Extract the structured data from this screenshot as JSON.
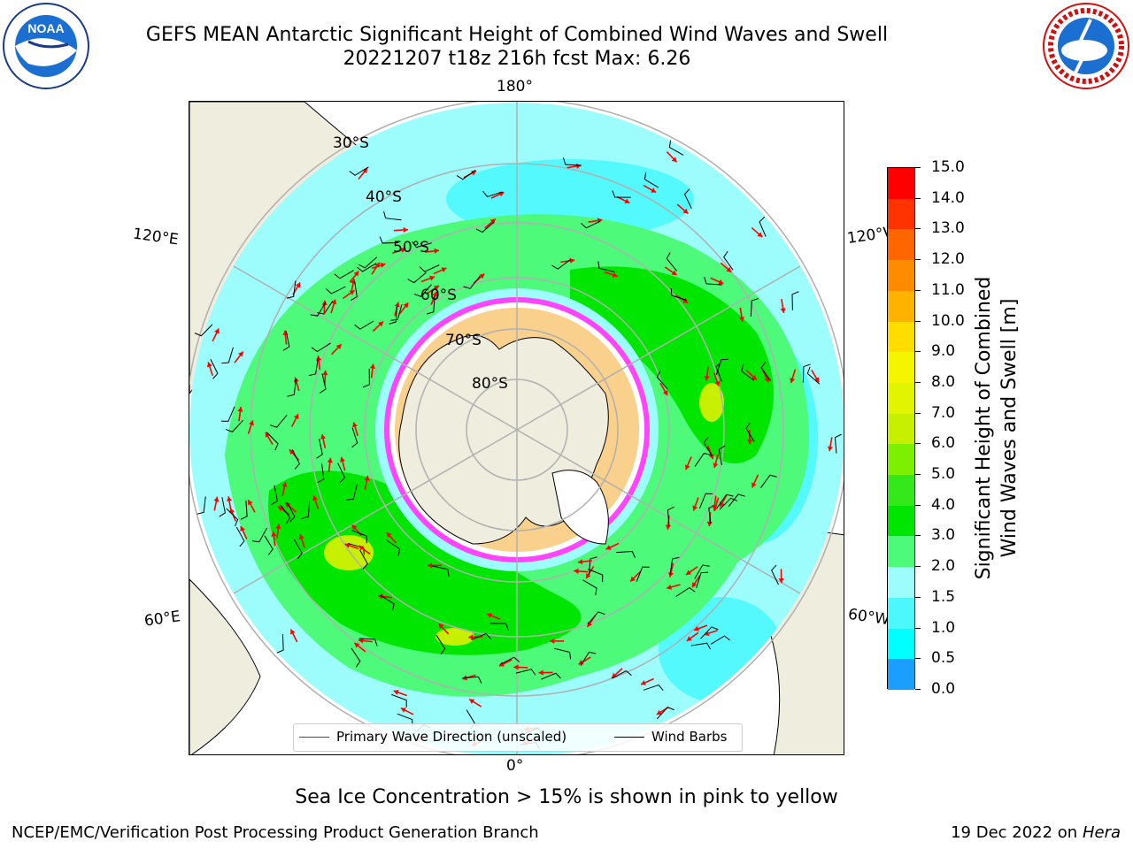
{
  "title": {
    "line1": "GEFS MEAN Antarctic Significant Height of Combined Wind Waves and Swell",
    "line2": "20221207 t18z 216h fcst   Max: 6.26"
  },
  "logos": {
    "left": "NOAA",
    "left_ring_text": "NATIONAL OCEANIC AND ATMOSPHERIC ADMINISTRATION · U.S. DEPARTMENT OF COMMERCE",
    "right_ring_text": "NATIONAL WEATHER SERVICE"
  },
  "map": {
    "longitude_labels": {
      "top": "180°",
      "bottom": "0°",
      "upper_left": "120°E",
      "upper_right": "120°W",
      "lower_left": "60°E",
      "lower_right": "60°W"
    },
    "latitude_labels": [
      "30°S",
      "40°S",
      "50°S",
      "60°S",
      "70°S",
      "80°S"
    ],
    "colors": {
      "land": "#efedde",
      "grid": "#b0b0b0",
      "wave_arrow": "#ff0000",
      "wind_barb": "#000000"
    }
  },
  "legend": {
    "primary_wave_direction": "Primary Wave Direction (unscaled)",
    "wind_barbs": "Wind Barbs"
  },
  "colorbar": {
    "label_line1": "Significant Height of Combined",
    "label_line2": "Wind Waves and Swell [m]",
    "ticks": [
      "15.0",
      "14.0",
      "13.0",
      "12.0",
      "11.0",
      "10.0",
      "9.0",
      "8.0",
      "7.0",
      "6.0",
      "5.0",
      "4.0",
      "3.0",
      "2.0",
      "1.5",
      "1.0",
      "0.5",
      "0.0"
    ],
    "colors": [
      "#ff0000",
      "#ff3300",
      "#ff6600",
      "#ff8c00",
      "#ffb300",
      "#ffdd00",
      "#f5f500",
      "#e1f500",
      "#c7f000",
      "#7cf000",
      "#35e81b",
      "#00e600",
      "#4dfa7a",
      "#9dfdfd",
      "#4df8fd",
      "#00ffff",
      "#1a9eff",
      "#0000ff"
    ]
  },
  "chart_data": {
    "type": "heatmap",
    "projection": "south polar stereographic",
    "parameter": "Significant Height of Combined Wind Waves and Swell",
    "units": "m",
    "run": "20221207 t18z",
    "forecast_hour": "216h",
    "max_value": 6.26,
    "contour_levels": [
      0.0,
      0.5,
      1.0,
      1.5,
      2.0,
      3.0,
      4.0,
      5.0,
      6.0,
      7.0,
      8.0,
      9.0,
      10.0,
      11.0,
      12.0,
      13.0,
      14.0,
      15.0
    ]
  },
  "notes": {
    "sea_ice": "Sea Ice Concentration > 15% is shown in pink to yellow"
  },
  "footer": {
    "left": "NCEP/EMC/Verification Post Processing Product Generation Branch",
    "right_date": "19 Dec 2022 on",
    "right_host": "Hera"
  }
}
